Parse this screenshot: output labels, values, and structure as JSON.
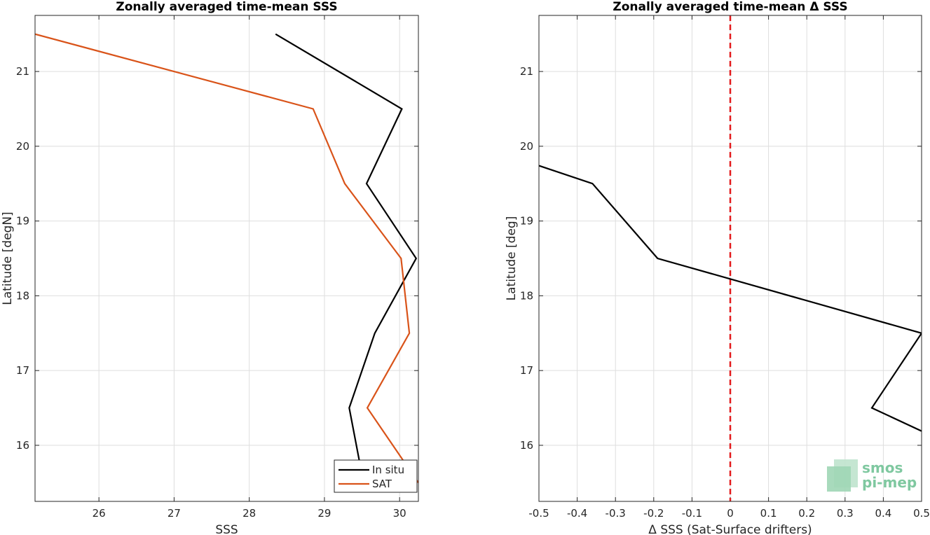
{
  "chart_data": [
    {
      "type": "line",
      "title": "Zonally averaged time-mean SSS",
      "xlabel": "SSS",
      "ylabel": "Latitude [degN]",
      "xlim": [
        25.15,
        30.25
      ],
      "ylim": [
        15.25,
        21.75
      ],
      "xticks": [
        26,
        27,
        28,
        29,
        30
      ],
      "yticks": [
        16,
        17,
        18,
        19,
        20,
        21
      ],
      "grid": true,
      "legend": "bottom-right",
      "series": [
        {
          "name": "In situ",
          "color": "#000000",
          "x": [
            28.35,
            30.03,
            29.56,
            30.22,
            29.67,
            29.33,
            29.52
          ],
          "y": [
            21.5,
            20.5,
            19.5,
            18.5,
            17.5,
            16.5,
            15.5
          ]
        },
        {
          "name": "SAT",
          "color": "#d95319",
          "x": [
            25.15,
            28.85,
            29.27,
            30.02,
            30.13,
            29.57,
            30.25
          ],
          "y": [
            21.5,
            20.5,
            19.5,
            18.5,
            17.5,
            16.5,
            15.5
          ]
        }
      ]
    },
    {
      "type": "line",
      "title": "Zonally averaged time-mean Δ SSS",
      "xlabel": "Δ SSS (Sat-Surface drifters)",
      "ylabel": "Latitude [deg]",
      "xlim": [
        -0.5,
        0.5
      ],
      "ylim": [
        15.25,
        21.75
      ],
      "xticks": [
        -0.5,
        -0.4,
        -0.3,
        -0.2,
        -0.1,
        0,
        0.1,
        0.2,
        0.3,
        0.4,
        0.5
      ],
      "yticks": [
        16,
        17,
        18,
        19,
        20,
        21
      ],
      "grid": true,
      "series": [
        {
          "color": "#000000",
          "x": [
            -0.5,
            -0.36,
            -0.19,
            0.5,
            0.37,
            0.5
          ],
          "y": [
            19.74,
            19.5,
            18.5,
            17.5,
            16.5,
            16.19
          ]
        }
      ],
      "reference_line": {
        "x": 0,
        "color": "#e31a1c",
        "style": "dashed"
      }
    }
  ],
  "watermark": {
    "line1": "smos",
    "line2": "pi-mep",
    "color": "#7fc8a0"
  }
}
